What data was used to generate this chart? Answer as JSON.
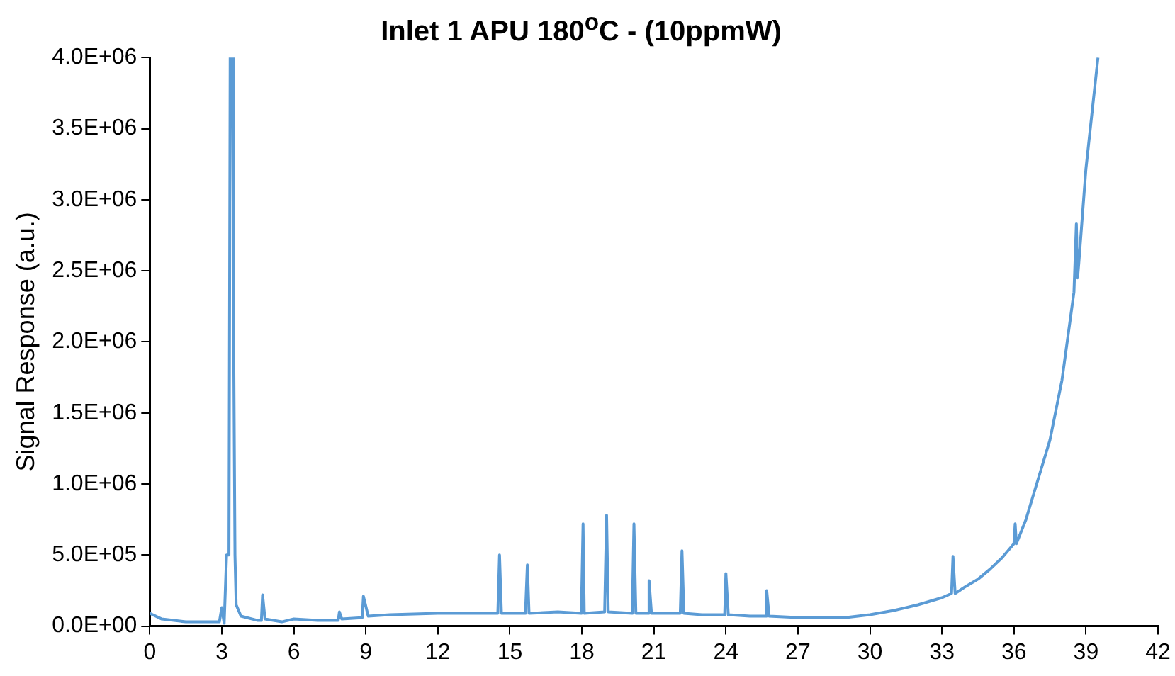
{
  "chart_data": {
    "type": "line",
    "title": "Inlet 1 APU 180$^{o}$C - (10ppmW)",
    "ylabel": "Signal Response (a.u.)",
    "xlim": [
      0,
      42
    ],
    "xticks": [
      0,
      3,
      6,
      9,
      12,
      15,
      18,
      21,
      24,
      27,
      30,
      33,
      36,
      39,
      42
    ],
    "ylim": [
      0,
      4000000
    ],
    "yticks": [
      {
        "value": 0,
        "label": "0.0E+00"
      },
      {
        "value": 500000,
        "label": "5.0E+05"
      },
      {
        "value": 1000000,
        "label": "1.0E+06"
      },
      {
        "value": 1500000,
        "label": "1.5E+06"
      },
      {
        "value": 2000000,
        "label": "2.0E+06"
      },
      {
        "value": 2500000,
        "label": "2.5E+06"
      },
      {
        "value": 3000000,
        "label": "3.0E+06"
      },
      {
        "value": 3500000,
        "label": "3.5E+06"
      },
      {
        "value": 4000000,
        "label": "4.0E+06"
      }
    ],
    "grid": false,
    "legend": false,
    "marker": "none",
    "line_style": "solid",
    "series": [
      {
        "color": "#5b9bd5",
        "x": [
          0,
          0.5,
          1.5,
          2.9,
          3.0,
          3.1,
          3.2,
          3.3,
          3.35,
          3.45,
          3.5,
          3.55,
          3.6,
          3.8,
          4.5,
          4.65,
          4.7,
          4.8,
          5.5,
          6.0,
          7.0,
          7.85,
          7.9,
          8.0,
          8.85,
          8.9,
          9.1,
          10,
          12,
          13,
          14,
          14.5,
          14.57,
          14.65,
          15.65,
          15.73,
          15.8,
          17,
          17.98,
          18.05,
          18.1,
          18.95,
          19.03,
          19.1,
          20.1,
          20.17,
          20.25,
          20.75,
          20.8,
          20.9,
          22.1,
          22.17,
          22.25,
          23,
          23.95,
          24.0,
          24.1,
          25,
          25.65,
          25.7,
          25.8,
          27,
          29,
          30,
          31,
          32,
          33,
          33.4,
          33.46,
          33.55,
          34,
          34.5,
          35,
          35.5,
          36,
          36.05,
          36.1,
          36.5,
          37,
          37.5,
          38,
          38.5,
          38.6,
          38.65,
          38.7,
          39,
          39.5
        ],
        "values": [
          90000,
          50000,
          30000,
          30000,
          130000,
          20000,
          500000,
          500000,
          4000000,
          4000000,
          1900000,
          500000,
          150000,
          70000,
          40000,
          40000,
          220000,
          50000,
          30000,
          50000,
          40000,
          40000,
          100000,
          50000,
          60000,
          210000,
          70000,
          80000,
          90000,
          90000,
          90000,
          90000,
          500000,
          90000,
          90000,
          430000,
          90000,
          100000,
          90000,
          720000,
          90000,
          100000,
          780000,
          100000,
          90000,
          720000,
          90000,
          90000,
          320000,
          90000,
          90000,
          530000,
          90000,
          80000,
          80000,
          370000,
          80000,
          70000,
          70000,
          250000,
          70000,
          60000,
          60000,
          80000,
          110000,
          150000,
          200000,
          230000,
          490000,
          230000,
          280000,
          330000,
          400000,
          480000,
          580000,
          720000,
          580000,
          750000,
          1030000,
          1310000,
          1730000,
          2350000,
          2830000,
          2450000,
          2550000,
          3220000,
          4000000
        ]
      }
    ]
  }
}
